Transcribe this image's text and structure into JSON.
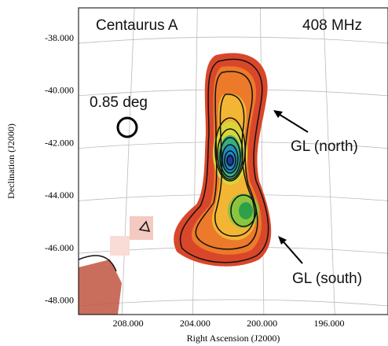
{
  "chart_data": {
    "type": "image",
    "title": "Centaurus A",
    "subtitle": "408 MHz",
    "x_label": "Right Ascension (J2000)",
    "y_label": "Declination (J2000)",
    "annotations": [
      "0.85 deg",
      "GL (north)",
      "GL (south)"
    ],
    "xlim": [
      210.96,
      192.48
    ],
    "ylim": [
      -48.51,
      -36.83
    ],
    "xticks": [
      {
        "value": 208,
        "label": "208.000"
      },
      {
        "value": 204,
        "label": "204.000"
      },
      {
        "value": 200,
        "label": "200.000"
      },
      {
        "value": 196,
        "label": "196.000"
      }
    ],
    "yticks": [
      {
        "value": -38,
        "label": "-38.000"
      },
      {
        "value": -40,
        "label": "-40.000"
      },
      {
        "value": -42,
        "label": "-42.000"
      },
      {
        "value": -44,
        "label": "-44.000"
      },
      {
        "value": -46,
        "label": "-46.000"
      },
      {
        "value": -48,
        "label": "-48.000"
      }
    ],
    "grid": true
  }
}
